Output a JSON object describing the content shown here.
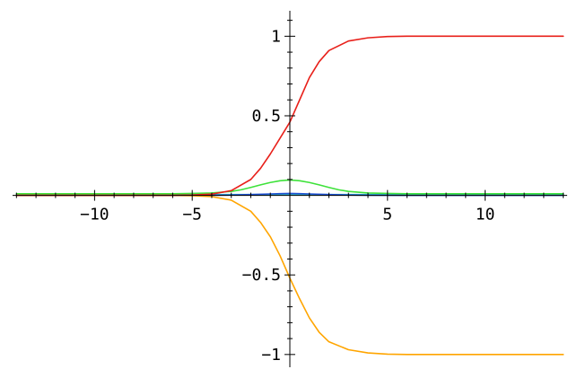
{
  "chart_data": {
    "type": "line",
    "title": "",
    "xlabel": "",
    "ylabel": "",
    "xlim": [
      -14.2,
      14.2
    ],
    "ylim": [
      -1.08,
      1.16
    ],
    "grid": false,
    "x_ticks": [
      {
        "value": -10,
        "label": "−10"
      },
      {
        "value": -5,
        "label": "−5"
      },
      {
        "value": 5,
        "label": "5"
      },
      {
        "value": 10,
        "label": "10"
      }
    ],
    "y_ticks": [
      {
        "value": 1,
        "label": "1"
      },
      {
        "value": 0.5,
        "label": "0.5"
      },
      {
        "value": -0.5,
        "label": "−0.5"
      },
      {
        "value": -1,
        "label": "−1"
      }
    ],
    "series": [
      {
        "color": "#e8201a",
        "x": [
          -14,
          -12,
          -10,
          -8,
          -6,
          -5,
          -4,
          -3,
          -2,
          -1.5,
          -1,
          -0.5,
          0,
          0.5,
          1,
          1.5,
          2,
          3,
          4,
          5,
          6,
          8,
          10,
          12,
          14
        ],
        "y": [
          0,
          0,
          0,
          0,
          0,
          0.002,
          0.008,
          0.03,
          0.1,
          0.17,
          0.26,
          0.36,
          0.46,
          0.6,
          0.74,
          0.84,
          0.91,
          0.97,
          0.99,
          0.998,
          1,
          1,
          1,
          1,
          1
        ]
      },
      {
        "color": "#ffa500",
        "x": [
          -14,
          -12,
          -10,
          -8,
          -6,
          -5,
          -4,
          -3,
          -2,
          -1.5,
          -1,
          -0.5,
          0,
          0.5,
          1,
          1.5,
          2,
          3,
          4,
          5,
          6,
          8,
          10,
          12,
          14
        ],
        "y": [
          0,
          0,
          0,
          0,
          0,
          -0.002,
          -0.008,
          -0.03,
          -0.1,
          -0.17,
          -0.26,
          -0.38,
          -0.52,
          -0.65,
          -0.77,
          -0.86,
          -0.92,
          -0.97,
          -0.99,
          -0.998,
          -1,
          -1,
          -1,
          -1,
          -1
        ]
      },
      {
        "color": "#3ee23a",
        "x": [
          -14,
          -10,
          -6,
          -5,
          -4,
          -3,
          -2.5,
          -2,
          -1.5,
          -1,
          -0.5,
          0,
          0.5,
          1,
          1.5,
          2,
          2.5,
          3,
          4,
          5,
          6,
          10,
          14
        ],
        "y": [
          0.01,
          0.01,
          0.01,
          0.012,
          0.015,
          0.025,
          0.035,
          0.05,
          0.066,
          0.081,
          0.092,
          0.097,
          0.092,
          0.081,
          0.066,
          0.05,
          0.035,
          0.025,
          0.015,
          0.012,
          0.01,
          0.01,
          0.01
        ]
      },
      {
        "color": "#1f4fd1",
        "x": [
          -14,
          -6,
          -4,
          -3,
          -2,
          -1,
          -0.5,
          0,
          0.5,
          1,
          2,
          3,
          4,
          6,
          14
        ],
        "y": [
          0,
          0,
          0.001,
          0.002,
          0.005,
          0.009,
          0.011,
          0.012,
          0.011,
          0.009,
          0.005,
          0.002,
          0.001,
          0,
          0
        ]
      },
      {
        "color": "#33c8c8",
        "x": [
          -14,
          14
        ],
        "y": [
          0.005,
          0.005
        ]
      }
    ]
  }
}
